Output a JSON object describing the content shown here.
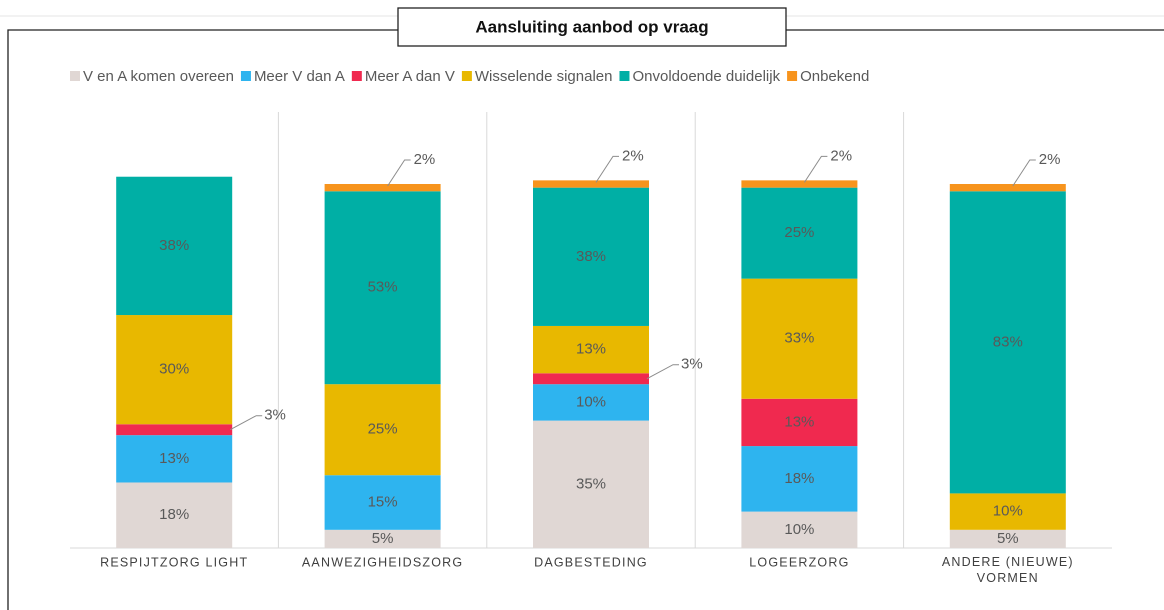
{
  "chart_data": {
    "type": "stacked_bar",
    "title": "Aansluiting aanbod op vraag",
    "categories": [
      "RESPIJTZORG LIGHT",
      "AANWEZIGHEIDSZORG",
      "DAGBESTEDING",
      "LOGEERZORG",
      "ANDERE (NIEUWE) VORMEN"
    ],
    "series": [
      {
        "name": "V en A komen overeen",
        "color": "#e0d7d4",
        "values": [
          18,
          5,
          35,
          10,
          5
        ],
        "value_labels": [
          "18%",
          "5%",
          "35%",
          "10%",
          "5%"
        ]
      },
      {
        "name": "Meer V dan A",
        "color": "#2eb4ef",
        "values": [
          13,
          15,
          10,
          18,
          0
        ],
        "value_labels": [
          "13%",
          "15%",
          "10%",
          "18%",
          null
        ]
      },
      {
        "name": "Meer A dan V",
        "color": "#f0294f",
        "values": [
          3,
          0,
          3,
          13,
          0
        ],
        "value_labels": [
          "3%",
          null,
          "3%",
          "13%",
          null
        ]
      },
      {
        "name": "Wisselende signalen",
        "color": "#e8b800",
        "values": [
          30,
          25,
          13,
          33,
          10
        ],
        "value_labels": [
          "30%",
          "25%",
          "13%",
          "33%",
          "10%"
        ]
      },
      {
        "name": "Onvoldoende duidelijk",
        "color": "#00afa5",
        "values": [
          38,
          53,
          38,
          25,
          83
        ],
        "value_labels": [
          "38%",
          "53%",
          "38%",
          "25%",
          "83%"
        ]
      },
      {
        "name": "Onbekend",
        "color": "#f7941d",
        "values": [
          0,
          2,
          2,
          2,
          2
        ],
        "value_labels": [
          null,
          "2%",
          "2%",
          "2%",
          "2%"
        ]
      }
    ]
  }
}
